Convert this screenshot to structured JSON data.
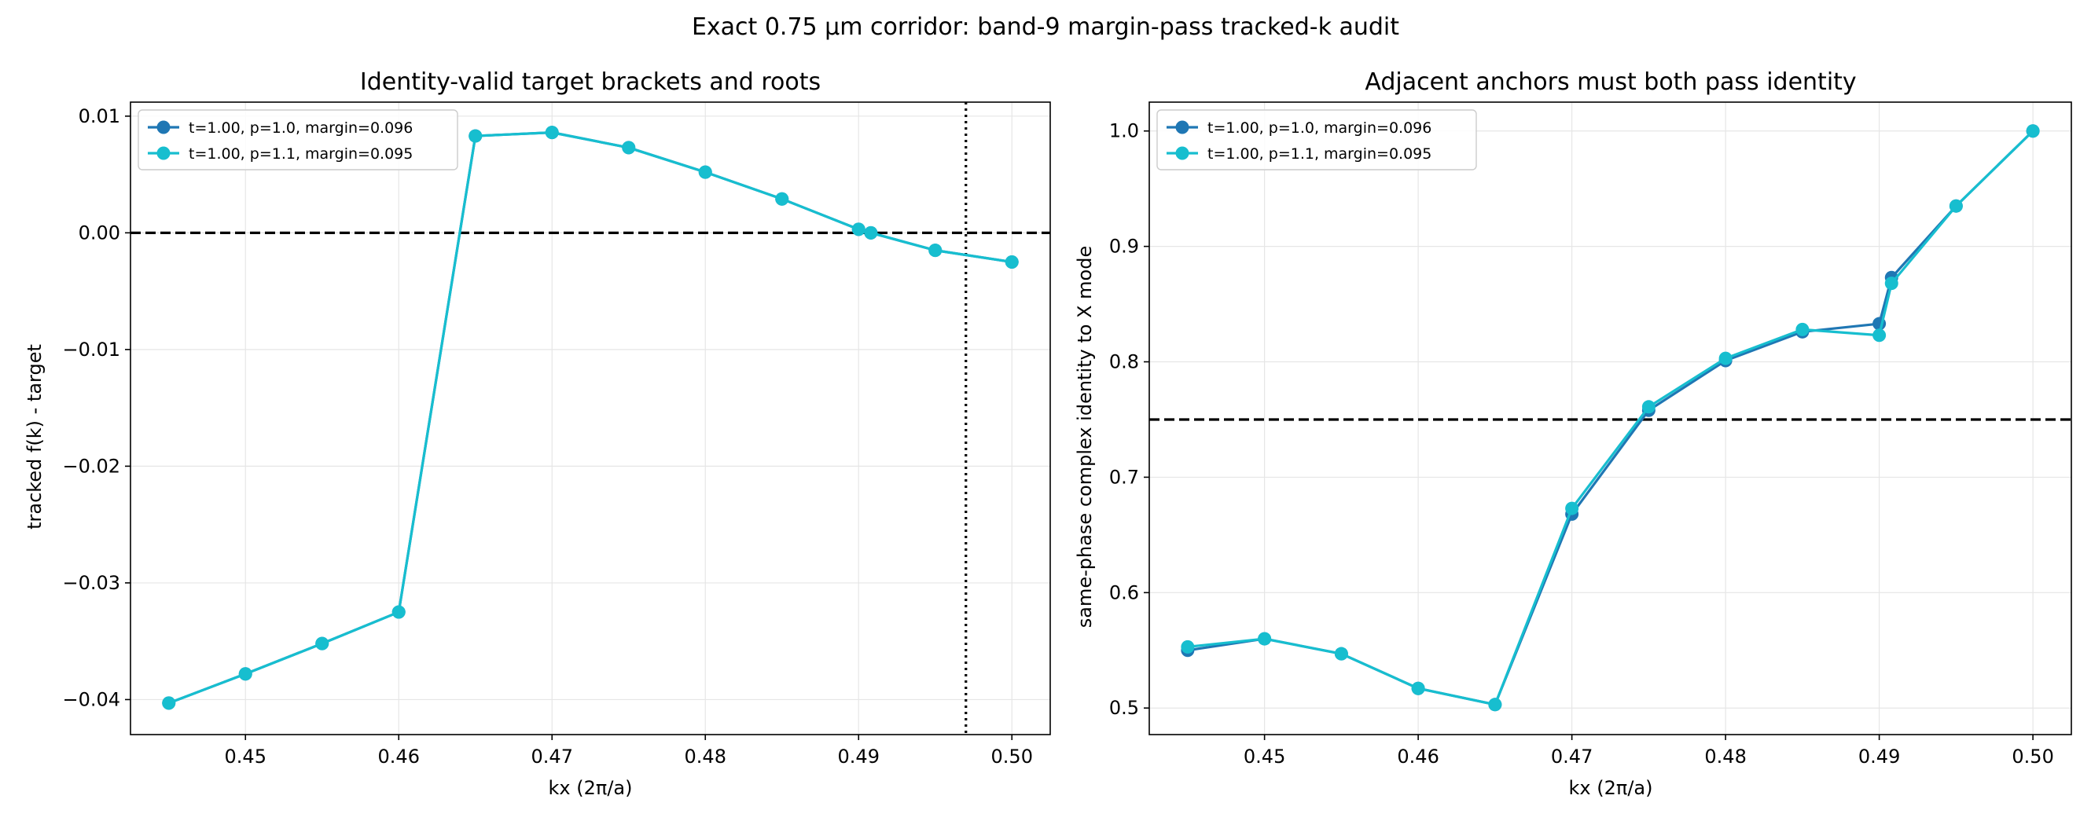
{
  "figure": {
    "suptitle": "Exact 0.75 μm corridor: band-9 margin-pass tracked-k audit"
  },
  "colors": {
    "series_a": "#1f77b4",
    "series_b": "#17becf",
    "grid": "#e6e6e6",
    "reference_line": "#000000"
  },
  "chart_data": [
    {
      "type": "line",
      "title": "Identity-valid target brackets and roots",
      "xlabel": "kx (2π/a)",
      "ylabel": "tracked f(k) - target",
      "xlim": [
        0.4425,
        0.5025
      ],
      "ylim": [
        -0.043,
        0.0112
      ],
      "xticks": [
        0.45,
        0.46,
        0.47,
        0.48,
        0.49,
        0.5
      ],
      "xtick_labels": [
        "0.45",
        "0.46",
        "0.47",
        "0.48",
        "0.49",
        "0.50"
      ],
      "yticks": [
        -0.04,
        -0.03,
        -0.02,
        -0.01,
        0.0,
        0.01
      ],
      "ytick_labels": [
        "−0.04",
        "−0.03",
        "−0.02",
        "−0.01",
        "0.00",
        "0.01"
      ],
      "grid": true,
      "legend_position": "top-left",
      "reference_lines": [
        {
          "orientation": "horizontal",
          "value": 0.0,
          "style": "dashed"
        },
        {
          "orientation": "vertical",
          "value": 0.497,
          "style": "dotted"
        }
      ],
      "series": [
        {
          "name": "t=1.00, p=1.0, margin=0.096",
          "color_key": "series_a",
          "x": [
            0.445,
            0.45,
            0.455,
            0.46,
            0.465,
            0.47,
            0.475,
            0.48,
            0.485,
            0.49,
            0.4908,
            0.495,
            0.5
          ],
          "y": [
            -0.0403,
            -0.0378,
            -0.0352,
            -0.0325,
            0.0083,
            0.0086,
            0.0073,
            0.0052,
            0.0029,
            0.0003,
            0.0,
            -0.0015,
            -0.0025
          ]
        },
        {
          "name": "t=1.00, p=1.1, margin=0.095",
          "color_key": "series_b",
          "x": [
            0.445,
            0.45,
            0.455,
            0.46,
            0.465,
            0.47,
            0.475,
            0.48,
            0.485,
            0.49,
            0.4908,
            0.495,
            0.5
          ],
          "y": [
            -0.0403,
            -0.0378,
            -0.0352,
            -0.0325,
            0.0083,
            0.0086,
            0.0073,
            0.0052,
            0.0029,
            0.0003,
            0.0,
            -0.0015,
            -0.0025
          ]
        }
      ]
    },
    {
      "type": "line",
      "title": "Adjacent anchors must both pass identity",
      "xlabel": "kx (2π/a)",
      "ylabel": "same-phase complex identity to X mode",
      "xlim": [
        0.4425,
        0.5025
      ],
      "ylim": [
        0.477,
        1.025
      ],
      "xticks": [
        0.45,
        0.46,
        0.47,
        0.48,
        0.49,
        0.5
      ],
      "xtick_labels": [
        "0.45",
        "0.46",
        "0.47",
        "0.48",
        "0.49",
        "0.50"
      ],
      "yticks": [
        0.5,
        0.6,
        0.7,
        0.8,
        0.9,
        1.0
      ],
      "ytick_labels": [
        "0.5",
        "0.6",
        "0.7",
        "0.8",
        "0.9",
        "1.0"
      ],
      "grid": true,
      "legend_position": "top-left",
      "reference_lines": [
        {
          "orientation": "horizontal",
          "value": 0.75,
          "style": "dashed"
        }
      ],
      "series": [
        {
          "name": "t=1.00, p=1.0, margin=0.096",
          "color_key": "series_a",
          "x": [
            0.445,
            0.45,
            0.455,
            0.46,
            0.465,
            0.47,
            0.475,
            0.48,
            0.485,
            0.49,
            0.4908,
            0.495,
            0.5
          ],
          "y": [
            0.55,
            0.56,
            0.547,
            0.517,
            0.503,
            0.668,
            0.758,
            0.801,
            0.826,
            0.833,
            0.873,
            0.935,
            1.0
          ]
        },
        {
          "name": "t=1.00, p=1.1, margin=0.095",
          "color_key": "series_b",
          "x": [
            0.445,
            0.45,
            0.455,
            0.46,
            0.465,
            0.47,
            0.475,
            0.48,
            0.485,
            0.49,
            0.4908,
            0.495,
            0.5
          ],
          "y": [
            0.553,
            0.56,
            0.547,
            0.517,
            0.503,
            0.673,
            0.761,
            0.803,
            0.828,
            0.823,
            0.868,
            0.935,
            1.0
          ]
        }
      ]
    }
  ]
}
